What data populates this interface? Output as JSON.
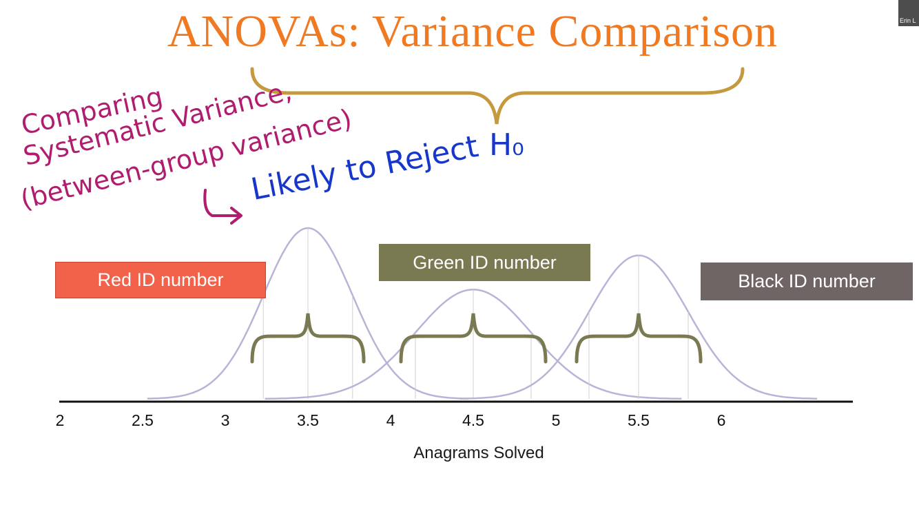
{
  "slide": {
    "title": "ANOVAs: Variance Comparison",
    "webcam_label": "Erin L"
  },
  "annotations": {
    "line1": "Comparing",
    "line2": "Systematic Variance,",
    "line3": "(between-group variance)",
    "line4": "Likely to Reject",
    "line5": "H₀"
  },
  "colors": {
    "title": "#f07a22",
    "curve": "#b9b3d8",
    "brace_small": "#7a7a52",
    "brace_large": "#c59a3e",
    "ink_magenta": "#b01c6e",
    "ink_blue": "#1637c9"
  },
  "chart_data": {
    "type": "line",
    "xlabel": "Anagrams Solved",
    "ylabel": "",
    "xlim": [
      2,
      6.5
    ],
    "x_ticks": [
      "2",
      "2.5",
      "3",
      "3.5",
      "4",
      "4.5",
      "5",
      "5.5",
      "6"
    ],
    "series": [
      {
        "name": "Red ID number",
        "mean": 3.5,
        "sd": 0.27,
        "relative_peak": 1.0,
        "box_color": "#f2614a"
      },
      {
        "name": "Green ID number",
        "mean": 4.5,
        "sd": 0.35,
        "relative_peak": 0.64,
        "box_color": "#7a7a52"
      },
      {
        "name": "Black ID number",
        "mean": 5.5,
        "sd": 0.3,
        "relative_peak": 0.84,
        "box_color": "#6f6565"
      }
    ],
    "grid": false
  }
}
